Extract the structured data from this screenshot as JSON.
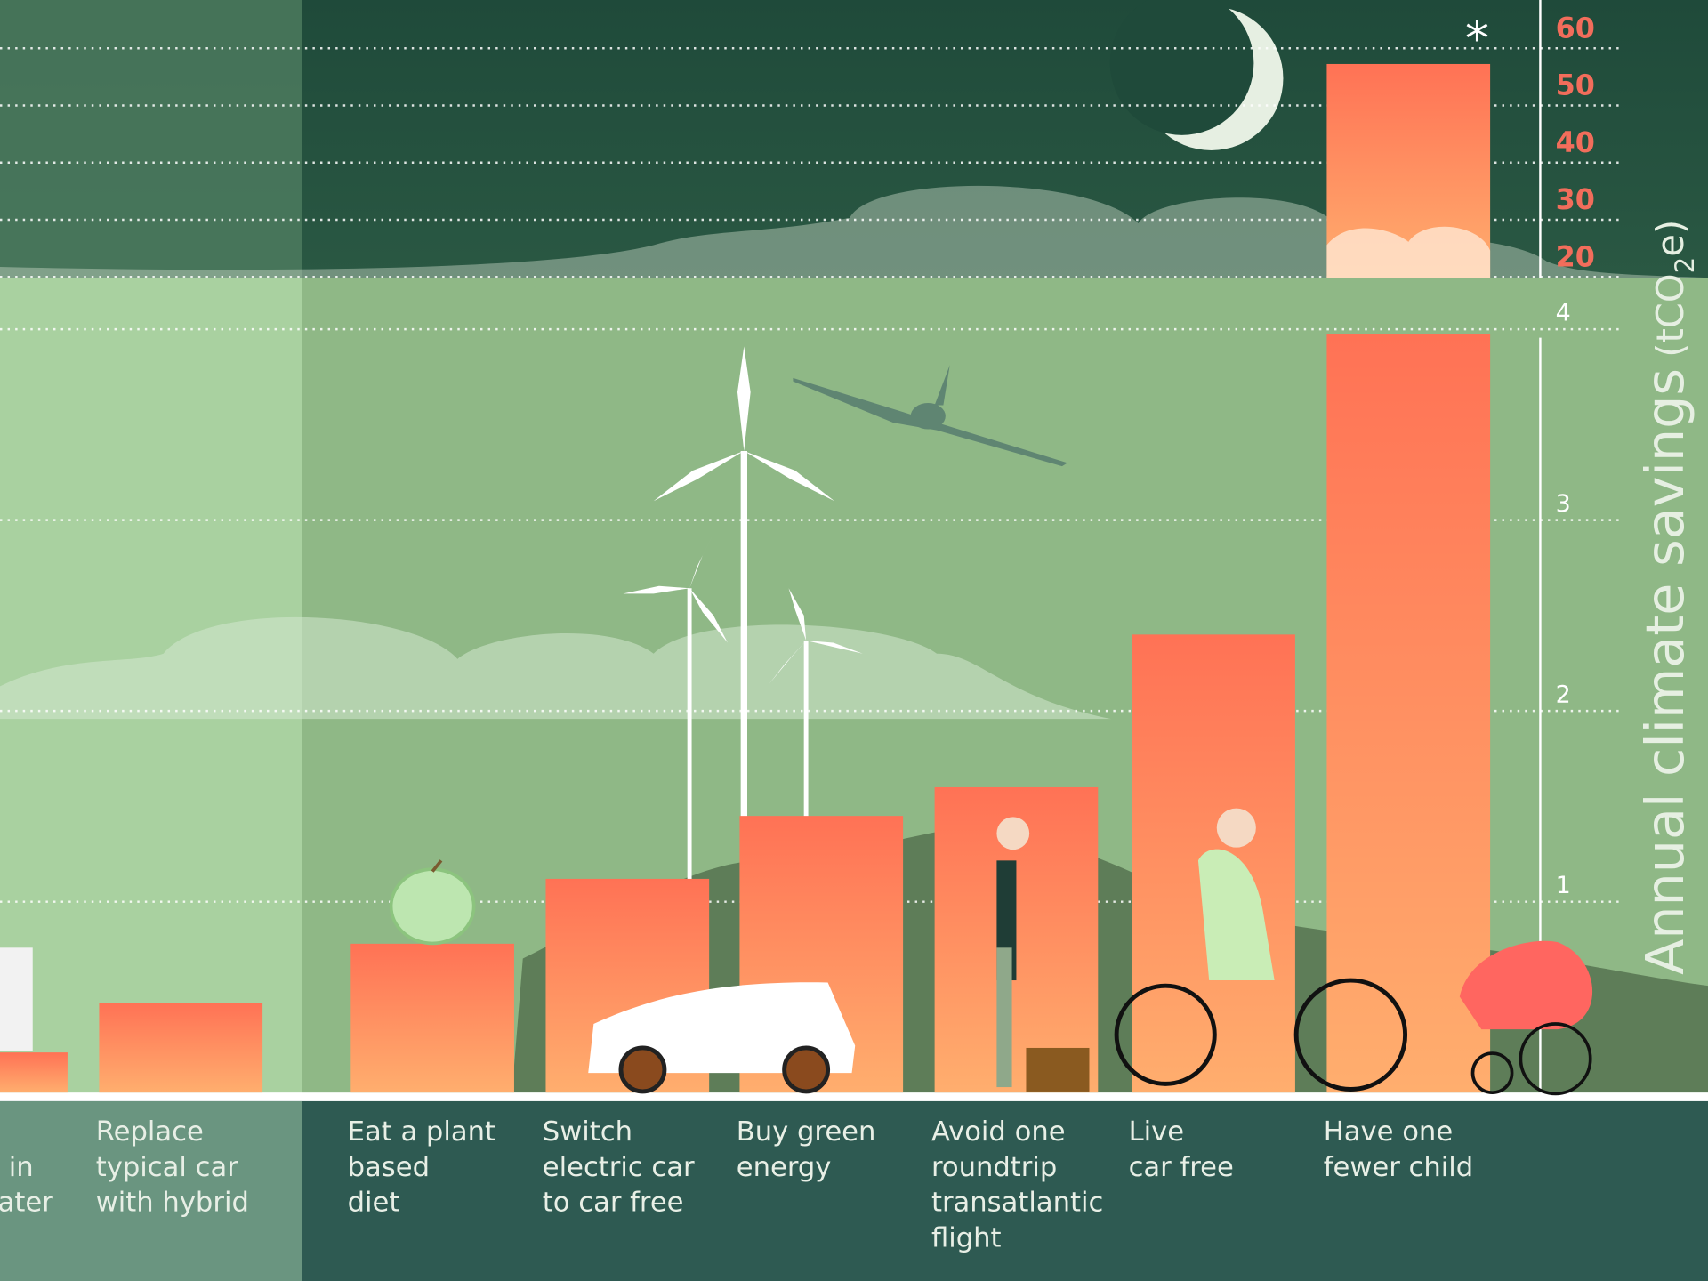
{
  "chart_data": {
    "type": "bar",
    "categories": [
      [
        "in",
        "ater"
      ],
      [
        "Replace",
        "typical car",
        "with hybrid"
      ],
      [
        "Eat a plant",
        "based",
        "diet"
      ],
      [
        "Switch",
        "electric car",
        "to car free"
      ],
      [
        "Buy green",
        "energy"
      ],
      [
        "Avoid one",
        "roundtrip",
        "transatlantic",
        "flight"
      ],
      [
        "Live",
        "car free"
      ],
      [
        "Have one",
        "fewer child"
      ]
    ],
    "values": [
      0.21,
      0.47,
      0.78,
      1.12,
      1.45,
      1.6,
      2.4,
      54
    ],
    "ylim": [
      0,
      4.27
    ],
    "yticks": [
      1,
      2,
      3,
      4
    ],
    "y2lim": [
      16.6,
      65.2
    ],
    "y2ticks": [
      20,
      30,
      40,
      50,
      60
    ],
    "y_label": {
      "main": "Annual climate savings",
      "unit_open": "(tCO",
      "unit_sub": "2",
      "unit_close": "e)"
    },
    "annotation": "*",
    "grid": true
  }
}
